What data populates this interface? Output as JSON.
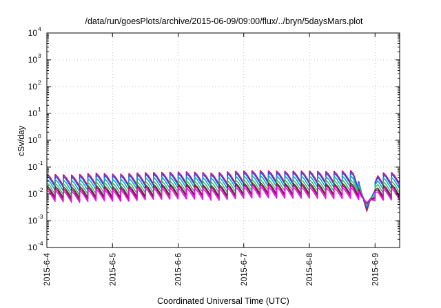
{
  "chart_data": {
    "type": "line",
    "title": "/data/run/goesPlots/archive/2015-06-09/09:00/flux/../bryn/5daysMars.plot",
    "xlabel": "Coordinated Universal Time (UTC)",
    "ylabel": "cSv/day",
    "yscale": "log",
    "ylim": [
      0.0001,
      10000
    ],
    "xlim": [
      "2015-06-04T00:00",
      "2015-06-09T09:00"
    ],
    "grid": true,
    "legend": "none",
    "y_ticks": [
      {
        "base": "10",
        "exp": "-4"
      },
      {
        "base": "10",
        "exp": "-3"
      },
      {
        "base": "10",
        "exp": "-2"
      },
      {
        "base": "10",
        "exp": "-1"
      },
      {
        "base": "10",
        "exp": "0"
      },
      {
        "base": "10",
        "exp": "1"
      },
      {
        "base": "10",
        "exp": "2"
      },
      {
        "base": "10",
        "exp": "3"
      },
      {
        "base": "10",
        "exp": "4"
      }
    ],
    "x_ticks": [
      "2015-6-4",
      "2015-6-5",
      "2015-6-6",
      "2015-6-7",
      "2015-6-8",
      "2015-6-9"
    ],
    "sawtooth": {
      "period_hours": 3,
      "peaks_over_minima": 2.6,
      "mars_dip": {
        "at": "2015-06-08T21:00",
        "min_value": 0.0015
      }
    },
    "series": [
      {
        "color": "#d4143a",
        "values": [
          0.056,
          0.05,
          0.06,
          0.054,
          0.062,
          0.064,
          0.067,
          0.06,
          0.07,
          0.075,
          0.07,
          0.072,
          0.068,
          0.074,
          0.06,
          0.064
        ]
      },
      {
        "color": "#4040ff",
        "values": [
          0.048,
          0.043,
          0.052,
          0.047,
          0.054,
          0.056,
          0.058,
          0.052,
          0.061,
          0.065,
          0.061,
          0.063,
          0.059,
          0.064,
          0.052,
          0.056
        ]
      },
      {
        "color": "#00a8d8",
        "values": [
          0.036,
          0.032,
          0.039,
          0.035,
          0.041,
          0.042,
          0.044,
          0.039,
          0.046,
          0.049,
          0.046,
          0.047,
          0.044,
          0.048,
          0.039,
          0.042
        ]
      },
      {
        "color": "#3fc060",
        "values": [
          0.026,
          0.023,
          0.028,
          0.025,
          0.029,
          0.03,
          0.031,
          0.028,
          0.033,
          0.035,
          0.033,
          0.034,
          0.032,
          0.034,
          0.028,
          0.03
        ]
      },
      {
        "color": "#404040",
        "values": [
          0.02,
          0.018,
          0.021,
          0.019,
          0.022,
          0.023,
          0.024,
          0.021,
          0.025,
          0.027,
          0.025,
          0.026,
          0.024,
          0.026,
          0.021,
          0.023
        ]
      },
      {
        "color": "#8b1c3c",
        "values": [
          0.017,
          0.015,
          0.018,
          0.016,
          0.019,
          0.02,
          0.021,
          0.018,
          0.022,
          0.023,
          0.022,
          0.022,
          0.021,
          0.022,
          0.018,
          0.02
        ]
      },
      {
        "color": "#ff00ff",
        "values": [
          0.014,
          0.0125,
          0.015,
          0.0135,
          0.016,
          0.0165,
          0.017,
          0.015,
          0.018,
          0.019,
          0.018,
          0.018,
          0.017,
          0.018,
          0.015,
          0.0165
        ]
      }
    ]
  }
}
